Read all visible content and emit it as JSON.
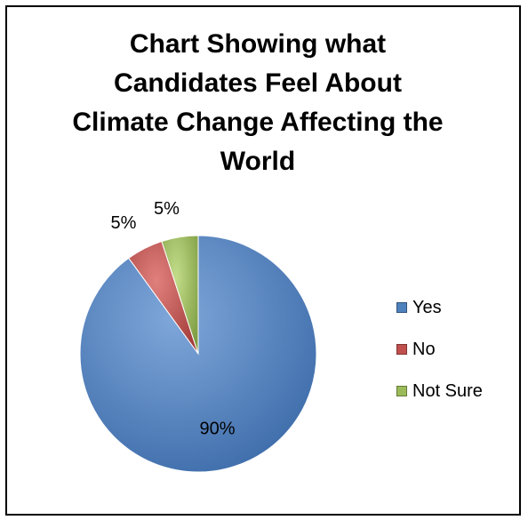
{
  "chart_data": {
    "type": "pie",
    "title_lines": [
      "Chart Showing what",
      "Candidates Feel About",
      "Climate Change Affecting the",
      "World"
    ],
    "categories": [
      "Yes",
      "No",
      "Not Sure"
    ],
    "values": [
      90,
      5,
      5
    ],
    "data_labels": [
      "90%",
      "5%",
      "5%"
    ],
    "colors": [
      "#4F81BD",
      "#C0504D",
      "#9BBB59"
    ],
    "legend_position": "right"
  }
}
